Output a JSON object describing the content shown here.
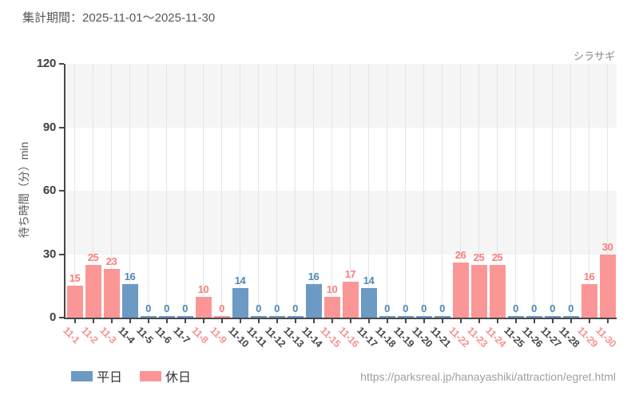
{
  "header": {
    "title": "集計期間：2025-11-01～2025-11-30"
  },
  "chart": {
    "series_label": "シラサギ",
    "y_axis_label": "待ち時間（分）min"
  },
  "legend": [
    {
      "label": "平日",
      "color": "#6d99c5"
    },
    {
      "label": "休日",
      "color": "#fb9696"
    }
  ],
  "footer": {
    "url": "https://parksreal.jp/hanayashiki/attraction/egret.html"
  },
  "chart_data": {
    "type": "bar",
    "title": "シラサギ",
    "categories": [
      "11-1",
      "11-2",
      "11-3",
      "11-4",
      "11-5",
      "11-6",
      "11-7",
      "11-8",
      "11-9",
      "11-10",
      "11-11",
      "11-12",
      "11-13",
      "11-14",
      "11-15",
      "11-16",
      "11-17",
      "11-18",
      "11-19",
      "11-20",
      "11-21",
      "11-22",
      "11-23",
      "11-24",
      "11-25",
      "11-26",
      "11-27",
      "11-28",
      "11-29",
      "11-30"
    ],
    "values": [
      15,
      25,
      23,
      16,
      0,
      0,
      0,
      10,
      0,
      14,
      0,
      0,
      0,
      16,
      10,
      17,
      14,
      0,
      0,
      0,
      0,
      26,
      25,
      25,
      0,
      0,
      0,
      0,
      16,
      30
    ],
    "day_types": [
      "holiday",
      "holiday",
      "holiday",
      "weekday",
      "weekday",
      "weekday",
      "weekday",
      "holiday",
      "holiday",
      "weekday",
      "weekday",
      "weekday",
      "weekday",
      "weekday",
      "holiday",
      "holiday",
      "weekday",
      "weekday",
      "weekday",
      "weekday",
      "weekday",
      "holiday",
      "holiday",
      "holiday",
      "weekday",
      "weekday",
      "weekday",
      "weekday",
      "holiday",
      "holiday"
    ],
    "xlabel": "",
    "ylabel": "待ち時間（分）min",
    "ylim": [
      0,
      120
    ],
    "yticks": [
      0,
      30,
      60,
      90,
      120
    ],
    "grid": true,
    "value_labels": true,
    "legend_position": "bottom-left",
    "legend_entries": [
      {
        "name": "平日",
        "applies_to": "weekday"
      },
      {
        "name": "休日",
        "applies_to": "holiday"
      }
    ],
    "colors": {
      "weekday_bar": "#6d99c5",
      "holiday_bar": "#fb9696",
      "weekday_value_label": "#4d87bb",
      "holiday_value_label": "#f87e7e",
      "weekday_tick_label": "#45474a",
      "holiday_tick_label": "#f89090",
      "band": "#f5f5f6",
      "gridline": "#e5e5e7",
      "axis": "#47484a"
    }
  }
}
